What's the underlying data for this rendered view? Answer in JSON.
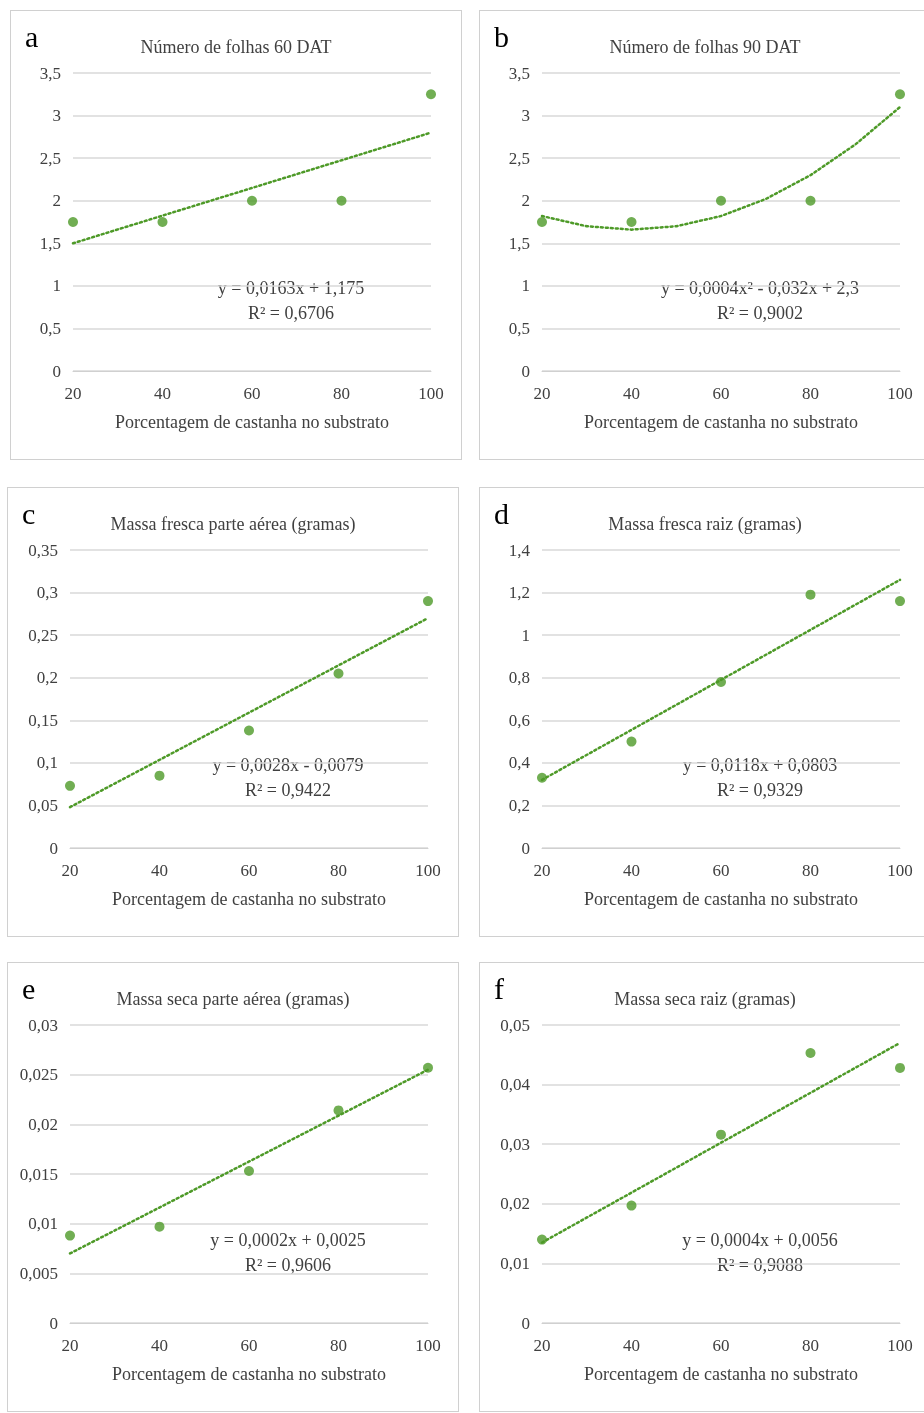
{
  "chart_data": [
    {
      "type": "scatter",
      "title": "Número de folhas 60 DAT",
      "xlabel": "Porcentagem de castanha no substrato",
      "annotations": [
        "a",
        "y = 0,0163x + 1,175",
        "R² = 0,6706"
      ],
      "x": [
        20,
        40,
        60,
        80,
        100
      ],
      "xlim": [
        20,
        100
      ],
      "xticks": [
        20,
        40,
        60,
        80,
        100
      ],
      "ylim": [
        0,
        3.5
      ],
      "yticks": [
        0,
        {
          "value": 0.5,
          "label": "0,5"
        },
        1,
        {
          "value": 1.5,
          "label": "1,5"
        },
        2,
        {
          "value": 2.5,
          "label": "2,5"
        },
        3,
        {
          "value": 3.5,
          "label": "3,5"
        }
      ],
      "grid": "y",
      "marker": "circle",
      "series": [
        {
          "color": "#4e9a28",
          "values": [
            1.75,
            1.75,
            2,
            2,
            3.25
          ]
        },
        {
          "type": "line",
          "color": "#4e9a28",
          "marker": "none",
          "line_style": "dotted",
          "x": [
            20,
            100
          ],
          "values": [
            1.5,
            2.8
          ]
        }
      ]
    },
    {
      "type": "scatter",
      "title": "Número de folhas 90 DAT",
      "xlabel": "Porcentagem de castanha no substrato",
      "annotations": [
        "b",
        "y = 0,0004x² - 0,032x + 2,3",
        "R² = 0,9002"
      ],
      "x": [
        20,
        40,
        60,
        80,
        100
      ],
      "xlim": [
        20,
        100
      ],
      "xticks": [
        20,
        40,
        60,
        80,
        100
      ],
      "ylim": [
        0,
        3.5
      ],
      "yticks": [
        0,
        {
          "value": 0.5,
          "label": "0,5"
        },
        1,
        {
          "value": 1.5,
          "label": "1,5"
        },
        2,
        {
          "value": 2.5,
          "label": "2,5"
        },
        3,
        {
          "value": 3.5,
          "label": "3,5"
        }
      ],
      "grid": "y",
      "marker": "circle",
      "series": [
        {
          "color": "#4e9a28",
          "values": [
            1.75,
            1.75,
            2,
            2,
            3.25
          ]
        },
        {
          "type": "line",
          "color": "#4e9a28",
          "marker": "none",
          "line_style": "dotted",
          "x": [
            20,
            30,
            40,
            50,
            60,
            70,
            80,
            90,
            100
          ],
          "values": [
            1.82,
            1.7,
            1.66,
            1.7,
            1.82,
            2.02,
            2.3,
            2.66,
            3.1
          ]
        }
      ]
    },
    {
      "type": "scatter",
      "title": "Massa fresca parte aérea (gramas)",
      "xlabel": "Porcentagem de castanha no substrato",
      "annotations": [
        "c",
        "y = 0,0028x - 0,0079",
        "R² = 0,9422"
      ],
      "x": [
        20,
        40,
        60,
        80,
        100
      ],
      "xlim": [
        20,
        100
      ],
      "xticks": [
        20,
        40,
        60,
        80,
        100
      ],
      "ylim": [
        0,
        0.35
      ],
      "yticks": [
        0,
        {
          "value": 0.05,
          "label": "0,05"
        },
        {
          "value": 0.1,
          "label": "0,1"
        },
        {
          "value": 0.15,
          "label": "0,15"
        },
        {
          "value": 0.2,
          "label": "0,2"
        },
        {
          "value": 0.25,
          "label": "0,25"
        },
        {
          "value": 0.3,
          "label": "0,3"
        },
        {
          "value": 0.35,
          "label": "0,35"
        }
      ],
      "grid": "y",
      "marker": "circle",
      "series": [
        {
          "color": "#4e9a28",
          "values": [
            0.073,
            0.085,
            0.138,
            0.205,
            0.29
          ]
        },
        {
          "type": "line",
          "color": "#4e9a28",
          "marker": "none",
          "line_style": "dotted",
          "x": [
            20,
            100
          ],
          "values": [
            0.048,
            0.27
          ]
        }
      ]
    },
    {
      "type": "scatter",
      "title": "Massa fresca raiz (gramas)",
      "xlabel": "Porcentagem de castanha no substrato",
      "annotations": [
        "d",
        "y = 0,0118x + 0,0803",
        "R² = 0,9329"
      ],
      "x": [
        20,
        40,
        60,
        80,
        100
      ],
      "xlim": [
        20,
        100
      ],
      "xticks": [
        20,
        40,
        60,
        80,
        100
      ],
      "ylim": [
        0,
        1.4
      ],
      "yticks": [
        0,
        {
          "value": 0.2,
          "label": "0,2"
        },
        {
          "value": 0.4,
          "label": "0,4"
        },
        {
          "value": 0.6,
          "label": "0,6"
        },
        {
          "value": 0.8,
          "label": "0,8"
        },
        1,
        {
          "value": 1.2,
          "label": "1,2"
        },
        {
          "value": 1.4,
          "label": "1,4"
        }
      ],
      "grid": "y",
      "marker": "circle",
      "series": [
        {
          "color": "#4e9a28",
          "values": [
            0.33,
            0.5,
            0.78,
            1.19,
            1.16
          ]
        },
        {
          "type": "line",
          "color": "#4e9a28",
          "marker": "none",
          "line_style": "dotted",
          "x": [
            20,
            100
          ],
          "values": [
            0.32,
            1.26
          ]
        }
      ]
    },
    {
      "type": "scatter",
      "title": "Massa seca parte aérea (gramas)",
      "xlabel": "Porcentagem de castanha no substrato",
      "annotations": [
        "e",
        "y = 0,0002x + 0,0025",
        "R² = 0,9606"
      ],
      "x": [
        20,
        40,
        60,
        80,
        100
      ],
      "xlim": [
        20,
        100
      ],
      "xticks": [
        20,
        40,
        60,
        80,
        100
      ],
      "ylim": [
        0,
        0.03
      ],
      "yticks": [
        0,
        {
          "value": 0.005,
          "label": "0,005"
        },
        {
          "value": 0.01,
          "label": "0,01"
        },
        {
          "value": 0.015,
          "label": "0,015"
        },
        {
          "value": 0.02,
          "label": "0,02"
        },
        {
          "value": 0.025,
          "label": "0,025"
        },
        {
          "value": 0.03,
          "label": "0,03"
        }
      ],
      "grid": "y",
      "marker": "circle",
      "series": [
        {
          "color": "#4e9a28",
          "values": [
            0.0088,
            0.0097,
            0.0153,
            0.0214,
            0.0257
          ]
        },
        {
          "type": "line",
          "color": "#4e9a28",
          "marker": "none",
          "line_style": "dotted",
          "x": [
            20,
            100
          ],
          "values": [
            0.007,
            0.0255
          ]
        }
      ]
    },
    {
      "type": "scatter",
      "title": "Massa seca raiz (gramas)",
      "xlabel": "Porcentagem de castanha no substrato",
      "annotations": [
        "f",
        "y = 0,0004x + 0,0056",
        "R² = 0,9088"
      ],
      "x": [
        20,
        40,
        60,
        80,
        100
      ],
      "xlim": [
        20,
        100
      ],
      "xticks": [
        20,
        40,
        60,
        80,
        100
      ],
      "ylim": [
        0,
        0.05
      ],
      "yticks": [
        0,
        {
          "value": 0.01,
          "label": "0,01"
        },
        {
          "value": 0.02,
          "label": "0,02"
        },
        {
          "value": 0.03,
          "label": "0,03"
        },
        {
          "value": 0.04,
          "label": "0,04"
        },
        {
          "value": 0.05,
          "label": "0,05"
        }
      ],
      "grid": "y",
      "marker": "circle",
      "series": [
        {
          "color": "#4e9a28",
          "values": [
            0.014,
            0.0197,
            0.0316,
            0.0453,
            0.0428
          ]
        },
        {
          "type": "line",
          "color": "#4e9a28",
          "marker": "none",
          "line_style": "dotted",
          "x": [
            20,
            100
          ],
          "values": [
            0.0135,
            0.047
          ]
        }
      ]
    }
  ]
}
